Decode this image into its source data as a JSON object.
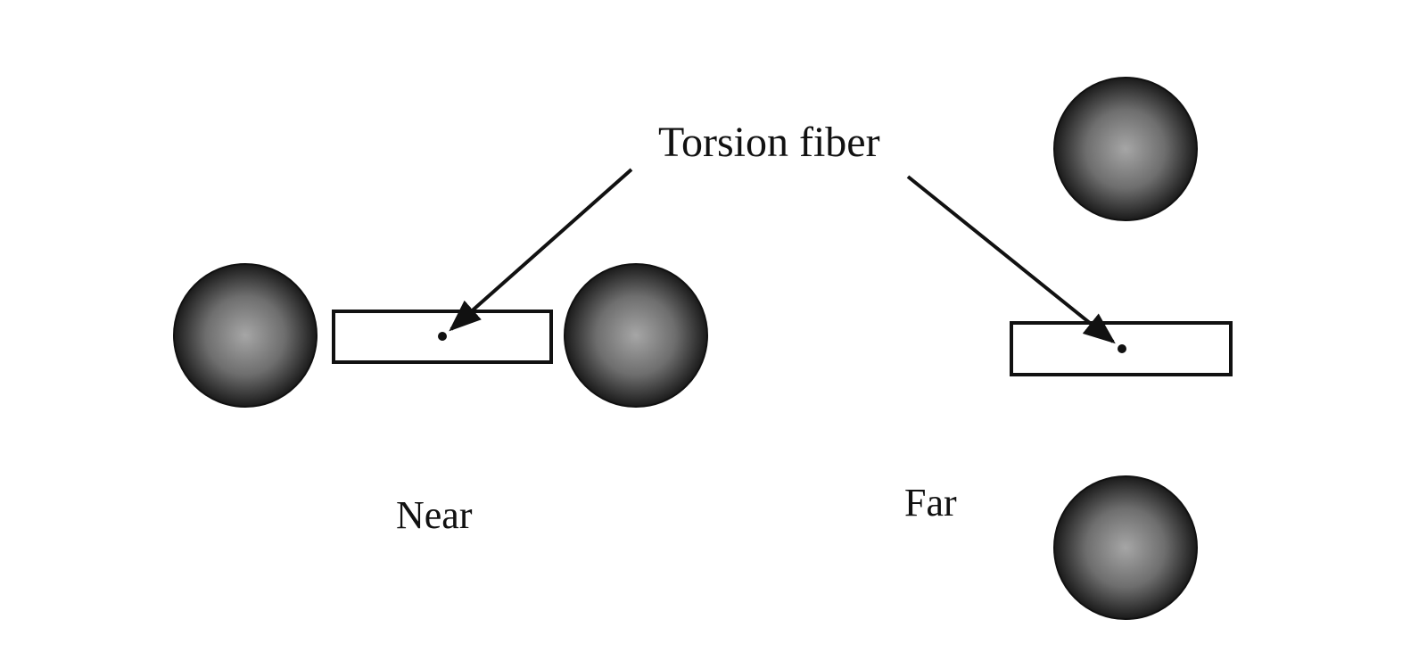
{
  "labels": {
    "callout": "Torsion fiber",
    "near": "Near",
    "far": "Far"
  },
  "colors": {
    "ink": "#111111",
    "sphere_center": "#a6a6a6",
    "sphere_edge": "#1a1a1a",
    "background": "#ffffff"
  },
  "configurations": [
    {
      "name": "Near",
      "sphere_count": 2,
      "sphere_placement": "in line with beam"
    },
    {
      "name": "Far",
      "sphere_count": 2,
      "sphere_placement": "perpendicular to beam"
    }
  ]
}
